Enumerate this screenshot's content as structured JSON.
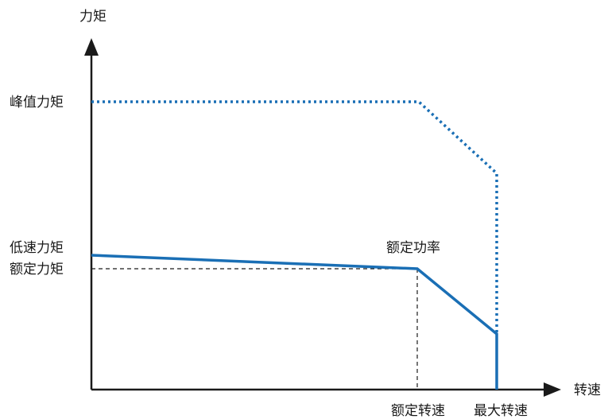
{
  "axes": {
    "y_label": "力矩",
    "x_label": "转速"
  },
  "labels": {
    "peak_torque": "峰值力矩",
    "low_speed_torque": "低速力矩",
    "rated_torque": "额定力矩",
    "rated_power": "额定功率",
    "rated_speed": "额定转速",
    "max_speed": "最大转速"
  },
  "colors": {
    "curve": "#1a6fb5",
    "axis": "#1a1a1a",
    "guide": "#1a1a1a"
  },
  "line_styles": {
    "peak_curve": "dotted",
    "continuous_curve": "solid",
    "guides": "dashed"
  }
}
